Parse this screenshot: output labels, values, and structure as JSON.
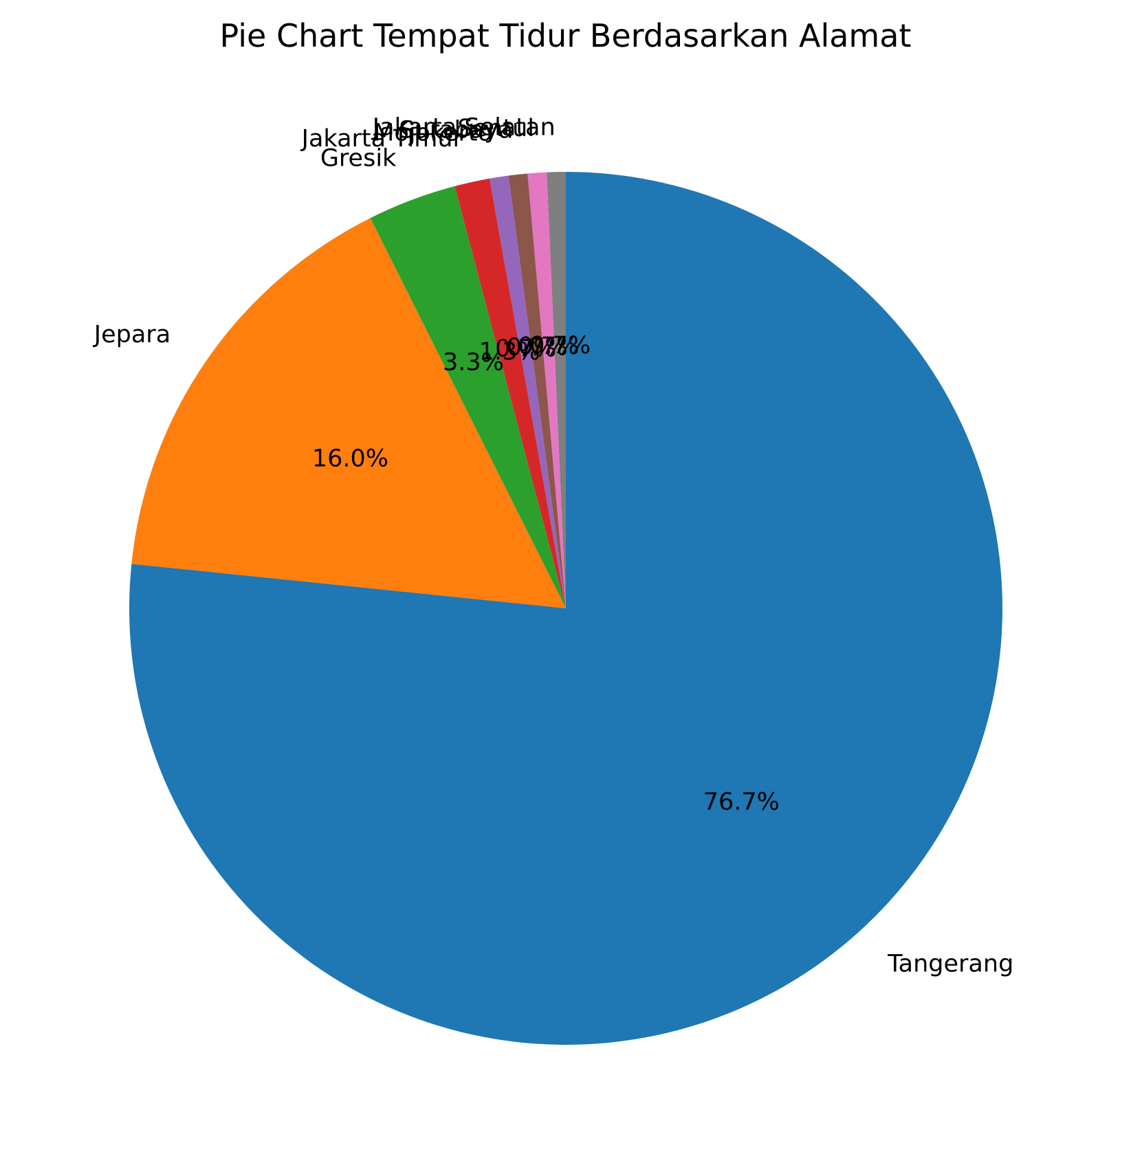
{
  "chart_data": {
    "type": "pie",
    "title": "Pie Chart Tempat Tidur Berdasarkan Alamat",
    "start_angle_deg": 90,
    "direction": "counterclockwise",
    "slices": [
      {
        "label": "Jakarta Selatan",
        "value": 0.7,
        "pct_label": "0.7%",
        "color": "#7f7f7f"
      },
      {
        "label": "Sentul",
        "value": 0.7,
        "pct_label": "0.7%",
        "color": "#e377c2"
      },
      {
        "label": "Surabaya",
        "value": 0.7,
        "pct_label": "0.7%",
        "color": "#8c564b"
      },
      {
        "label": "Mojokerto",
        "value": 0.7,
        "pct_label": "0.7%",
        "color": "#9467bd"
      },
      {
        "label": "Jakarta Timur",
        "value": 1.3,
        "pct_label": "1.3%",
        "color": "#d62728"
      },
      {
        "label": "Gresik",
        "value": 3.3,
        "pct_label": "3.3%",
        "color": "#2ca02c"
      },
      {
        "label": "Jepara",
        "value": 16.0,
        "pct_label": "16.0%",
        "color": "#ff7f0e"
      },
      {
        "label": "Tangerang",
        "value": 76.7,
        "pct_label": "76.7%",
        "color": "#1f77b4"
      }
    ]
  }
}
